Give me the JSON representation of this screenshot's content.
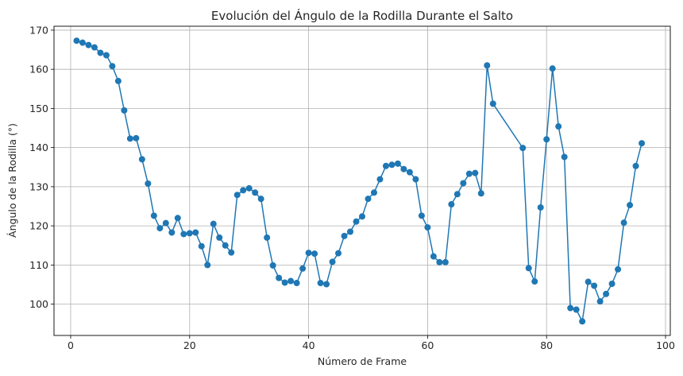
{
  "chart_data": {
    "type": "line",
    "title": "Evolución del Ángulo de la Rodilla Durante el Salto",
    "xlabel": "Número de Frame",
    "ylabel": "Ángulo de la Rodilla (°)",
    "xlim": [
      -2.8,
      100.8
    ],
    "ylim": [
      92,
      171
    ],
    "xticks": [
      0,
      20,
      40,
      60,
      80,
      100
    ],
    "yticks": [
      100,
      110,
      120,
      130,
      140,
      150,
      160,
      170
    ],
    "grid": true,
    "marker": "circle",
    "line_color": "#1f77b4",
    "series": [
      {
        "x": [
          1,
          2,
          3,
          4,
          5,
          6,
          7,
          8,
          9,
          10,
          11,
          12,
          13,
          14,
          15,
          16,
          17,
          18,
          19,
          20,
          21,
          22,
          23,
          24,
          25,
          26,
          27,
          28,
          29,
          30,
          31,
          32,
          33,
          34,
          35,
          36,
          37,
          38,
          39,
          40,
          41,
          42,
          43,
          44,
          45,
          46,
          47,
          48,
          49,
          50,
          51,
          52,
          53,
          54,
          55,
          56,
          57,
          58,
          59,
          60,
          61,
          62,
          63,
          64,
          65,
          66,
          67,
          68,
          69,
          70,
          71,
          76,
          77,
          78,
          79,
          80,
          81,
          82,
          83,
          84,
          85,
          86,
          87,
          88,
          89,
          90,
          91,
          92,
          93,
          94,
          95,
          96
        ],
        "y": [
          167.3,
          166.8,
          166.2,
          165.6,
          164.2,
          163.6,
          160.8,
          157.0,
          149.5,
          142.3,
          142.4,
          137.0,
          130.8,
          122.6,
          119.4,
          120.7,
          118.3,
          122.0,
          117.9,
          118.1,
          118.3,
          114.8,
          110.0,
          120.5,
          117.0,
          115.0,
          113.2,
          127.9,
          129.1,
          129.6,
          128.5,
          126.9,
          117.0,
          109.9,
          106.7,
          105.5,
          105.9,
          105.4,
          109.1,
          113.1,
          112.9,
          105.4,
          105.1,
          110.8,
          113.0,
          117.4,
          118.5,
          121.1,
          122.4,
          126.9,
          128.5,
          131.9,
          135.3,
          135.6,
          135.9,
          134.5,
          133.7,
          131.9,
          122.6,
          119.6,
          112.2,
          110.7,
          110.7,
          125.5,
          128.1,
          130.9,
          133.3,
          133.5,
          128.3,
          161.0,
          151.2,
          139.9,
          109.2,
          105.8,
          124.7,
          142.1,
          160.2,
          145.4,
          137.6,
          99.0,
          98.6,
          95.6,
          105.7,
          104.7,
          100.7,
          102.6,
          105.2,
          108.9,
          120.8,
          125.3,
          135.3,
          141.1
        ]
      }
    ]
  }
}
